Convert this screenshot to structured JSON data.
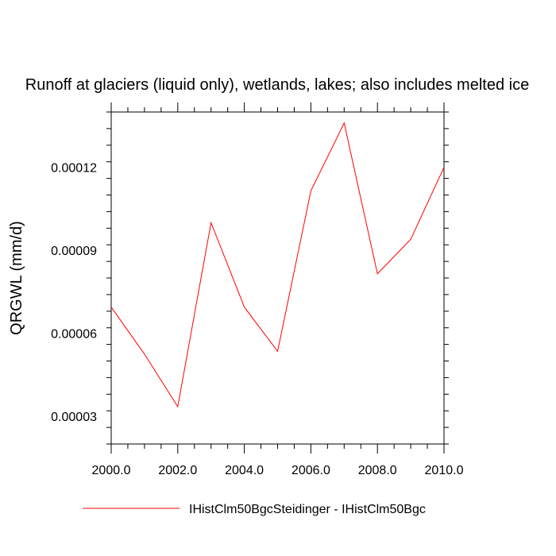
{
  "chart_data": {
    "type": "line",
    "title": "Runoff at glaciers (liquid only), wetlands, lakes; also includes melted ice",
    "xlabel": "",
    "ylabel": "QRGWL  (mm/d)",
    "xlim": [
      2000,
      2010
    ],
    "ylim": [
      2e-05,
      0.00014
    ],
    "x_ticks": [
      2000,
      2002,
      2004,
      2006,
      2008,
      2010
    ],
    "x_tick_labels": [
      "2000.0",
      "2002.0",
      "2004.0",
      "2006.0",
      "2008.0",
      "2010.0"
    ],
    "y_ticks": [
      3e-05,
      6e-05,
      9e-05,
      0.00012
    ],
    "y_tick_labels": [
      "0.00003",
      "0.00006",
      "0.00009",
      "0.00012"
    ],
    "grid": false,
    "legend_position": "bottom",
    "series": [
      {
        "name": "IHistClm50BgcSteidinger - IHistClm50Bgc",
        "color": "#ff0000",
        "x": [
          2000,
          2001,
          2002,
          2003,
          2004,
          2005,
          2006,
          2007,
          2008,
          2009,
          2010
        ],
        "values": [
          6.95e-05,
          5.25e-05,
          3.35e-05,
          0.0001,
          6.95e-05,
          5.35e-05,
          0.0001115,
          0.000136,
          8.15e-05,
          9.4e-05,
          0.00012
        ]
      }
    ]
  }
}
